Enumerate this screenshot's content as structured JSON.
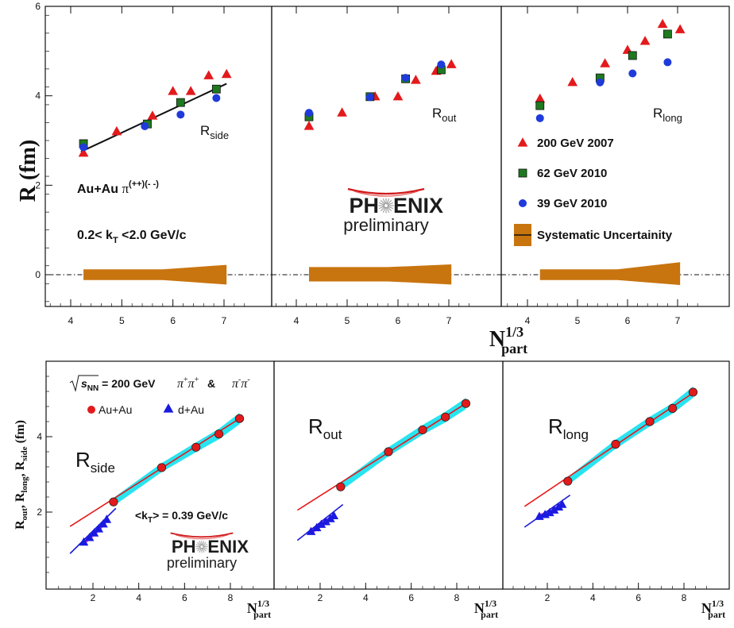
{
  "chart_data": [
    {
      "type": "scatter",
      "panels": [
        "side",
        "out",
        "long"
      ],
      "ylabel": "R (fm)",
      "xlabel_base": "N",
      "xlabel_sup": "1/3",
      "xlabel_sub": "part",
      "xlim": [
        3.5,
        7.6
      ],
      "ylim": [
        -0.7,
        6.0
      ],
      "xticks": [
        4,
        5,
        6,
        7
      ],
      "yticks": [
        0,
        2,
        4,
        6
      ],
      "panel_labels": {
        "main": "R",
        "subs": [
          "side",
          "out",
          "long"
        ]
      },
      "annotations": {
        "system_base": "Au+Au ",
        "system_pi": "π",
        "system_sup": "(++)(- -)",
        "kt_pre": "0.2< k",
        "kt_sub": "T",
        "kt_post": " <2.0 GeV/c"
      },
      "logo": {
        "left": "PH",
        "right": "ENIX",
        "sub": "preliminary"
      },
      "legend": [
        {
          "label": "200 GeV 2007",
          "color": "#e31a1c",
          "marker": "triangle"
        },
        {
          "label": "62 GeV 2010",
          "color": "#1e7a1e",
          "marker": "square"
        },
        {
          "label": "39 GeV 2010",
          "color": "#1f3bdb",
          "marker": "circle"
        },
        {
          "label": "Systematic Uncertainity",
          "color": "#c8740f",
          "marker": "band"
        }
      ],
      "series": [
        {
          "name": "200 GeV 2007",
          "panels": [
            [
              [
                4.25,
                2.72
              ],
              [
                4.9,
                3.2
              ],
              [
                5.6,
                3.55
              ],
              [
                6.0,
                4.1
              ],
              [
                6.35,
                4.1
              ],
              [
                6.7,
                4.45
              ],
              [
                7.05,
                4.48
              ]
            ],
            [
              [
                4.25,
                3.32
              ],
              [
                4.9,
                3.62
              ],
              [
                5.55,
                3.98
              ],
              [
                6.0,
                3.98
              ],
              [
                6.35,
                4.35
              ],
              [
                6.75,
                4.55
              ],
              [
                7.05,
                4.7
              ]
            ],
            [
              [
                4.25,
                3.93
              ],
              [
                4.9,
                4.3
              ],
              [
                5.55,
                4.72
              ],
              [
                6.0,
                5.02
              ],
              [
                6.35,
                5.22
              ],
              [
                6.7,
                5.6
              ],
              [
                7.05,
                5.48
              ]
            ]
          ]
        },
        {
          "name": "62 GeV 2010",
          "panels": [
            [
              [
                4.25,
                2.93
              ],
              [
                5.5,
                3.37
              ],
              [
                6.15,
                3.85
              ],
              [
                6.85,
                4.15
              ]
            ],
            [
              [
                4.25,
                3.53
              ],
              [
                5.45,
                3.98
              ],
              [
                6.15,
                4.38
              ],
              [
                6.85,
                4.58
              ]
            ],
            [
              [
                4.25,
                3.78
              ],
              [
                5.45,
                4.4
              ],
              [
                6.1,
                4.9
              ],
              [
                6.8,
                5.38
              ]
            ]
          ]
        },
        {
          "name": "39 GeV 2010",
          "panels": [
            [
              [
                4.25,
                2.85
              ],
              [
                5.45,
                3.32
              ],
              [
                6.15,
                3.58
              ],
              [
                6.85,
                3.95
              ]
            ],
            [
              [
                4.25,
                3.62
              ],
              [
                5.45,
                3.97
              ],
              [
                6.15,
                4.4
              ],
              [
                6.85,
                4.7
              ]
            ],
            [
              [
                4.25,
                3.5
              ],
              [
                5.45,
                4.3
              ],
              [
                6.1,
                4.5
              ],
              [
                6.8,
                4.75
              ]
            ]
          ]
        }
      ],
      "side_fit": {
        "x": [
          4.2,
          7.05
        ],
        "y": [
          2.75,
          4.27
        ]
      },
      "uncertainty_band": [
        {
          "x": [
            4.25,
            5.8,
            7.05
          ],
          "y_lo": [
            -0.12,
            -0.12,
            -0.22
          ],
          "y_hi": [
            0.12,
            0.12,
            0.22
          ]
        },
        {
          "x": [
            4.25,
            5.8,
            7.05
          ],
          "y_lo": [
            -0.15,
            -0.15,
            -0.22
          ],
          "y_hi": [
            0.17,
            0.17,
            0.23
          ]
        },
        {
          "x": [
            4.25,
            5.8,
            7.05
          ],
          "y_lo": [
            -0.12,
            -0.12,
            -0.23
          ],
          "y_hi": [
            0.12,
            0.12,
            0.28
          ]
        }
      ]
    },
    {
      "type": "scatter",
      "panels": [
        "side",
        "out",
        "long"
      ],
      "ylabel": {
        "parts": [
          {
            "t": "R",
            "sub": "out"
          },
          {
            "t": ", R",
            "sub": "long"
          },
          {
            "t": ", R",
            "sub": "side"
          },
          {
            "t": " (fm)"
          }
        ]
      },
      "xlabel_base": "N",
      "xlabel_sup": "1/3",
      "xlabel_sub": "part",
      "xlim": [
        0.5,
        9.2
      ],
      "ylim": [
        0.2,
        5.8
      ],
      "xticks": [
        2,
        4,
        6,
        8
      ],
      "yticks": [
        2,
        4
      ],
      "panel_labels": {
        "main": "R",
        "subs": [
          "side",
          "out",
          "long"
        ]
      },
      "header": {
        "sqrt_sub": "NN",
        "energy": " = 200 GeV",
        "pi": "π",
        "plus": "+",
        "minus": "-",
        "amp": " & "
      },
      "legend": [
        {
          "label": "Au+Au",
          "color": "#e31a1c",
          "marker": "circle"
        },
        {
          "label": "d+Au",
          "color": "#1a1ae0",
          "marker": "triangle"
        }
      ],
      "kt_note": {
        "pre": "<k",
        "sub": "T",
        "post": "> = 0.39 GeV/c"
      },
      "logo": {
        "left": "PH",
        "right": "ENIX",
        "sub": "preliminary"
      },
      "auau": [
        [
          [
            2.9,
            2.27
          ],
          [
            5.0,
            3.18
          ],
          [
            6.5,
            3.72
          ],
          [
            7.5,
            4.07
          ],
          [
            8.4,
            4.48
          ]
        ],
        [
          [
            2.9,
            2.67
          ],
          [
            5.0,
            3.6
          ],
          [
            6.5,
            4.18
          ],
          [
            7.5,
            4.52
          ],
          [
            8.4,
            4.88
          ]
        ],
        [
          [
            2.9,
            2.82
          ],
          [
            5.0,
            3.8
          ],
          [
            6.5,
            4.4
          ],
          [
            7.5,
            4.75
          ],
          [
            8.4,
            5.18
          ]
        ]
      ],
      "dau": [
        [
          [
            1.6,
            1.2
          ],
          [
            1.85,
            1.32
          ],
          [
            2.05,
            1.44
          ],
          [
            2.25,
            1.55
          ],
          [
            2.45,
            1.68
          ],
          [
            2.6,
            1.8
          ]
        ],
        [
          [
            1.6,
            1.48
          ],
          [
            1.85,
            1.58
          ],
          [
            2.05,
            1.67
          ],
          [
            2.25,
            1.74
          ],
          [
            2.45,
            1.82
          ],
          [
            2.6,
            1.9
          ]
        ],
        [
          [
            1.65,
            1.88
          ],
          [
            1.9,
            1.93
          ],
          [
            2.1,
            1.98
          ],
          [
            2.3,
            2.05
          ],
          [
            2.5,
            2.13
          ],
          [
            2.65,
            2.2
          ]
        ]
      ],
      "auau_fit": [
        {
          "x": [
            1.0,
            8.4
          ],
          "y": [
            1.62,
            4.48
          ]
        },
        {
          "x": [
            1.0,
            8.5
          ],
          "y": [
            2.05,
            4.92
          ]
        },
        {
          "x": [
            1.0,
            8.5
          ],
          "y": [
            2.15,
            5.2
          ]
        }
      ],
      "dau_fit": [
        {
          "x": [
            1.0,
            3.0
          ],
          "y": [
            0.9,
            2.1
          ]
        },
        {
          "x": [
            1.0,
            3.0
          ],
          "y": [
            1.25,
            2.2
          ]
        },
        {
          "x": [
            1.0,
            3.0
          ],
          "y": [
            1.6,
            2.45
          ]
        }
      ],
      "colors": {
        "auau_fit": "#e8181a",
        "dau_fit": "#1a1ad8",
        "band": "#28e4f0",
        "dau_band": "#e838e0"
      }
    }
  ]
}
